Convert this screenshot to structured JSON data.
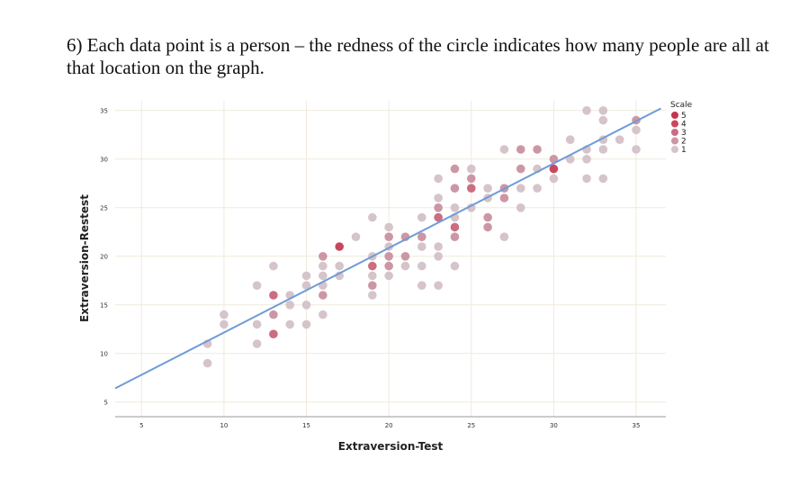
{
  "heading": "6) Each data point is a person – the redness of the circle indicates how many people are all at that location on the graph.",
  "chart_data": {
    "type": "scatter",
    "xlabel": "Extraversion-Test",
    "ylabel": "Extraversion-Restest",
    "xlim": [
      3.4,
      36.8
    ],
    "ylim": [
      3.5,
      36
    ],
    "xticks": [
      5,
      10,
      15,
      20,
      25,
      30,
      35
    ],
    "yticks": [
      5,
      10,
      15,
      20,
      25,
      30,
      35
    ],
    "grid": true,
    "legend": {
      "title": "Scale",
      "placement": "right",
      "entries": [
        5,
        4,
        3,
        2,
        1
      ],
      "colors": [
        "#c8334c",
        "#c9475d",
        "#cc6d80",
        "#cc97a5",
        "#d5c4c9"
      ]
    },
    "fit_line": {
      "intercept": 3.46,
      "slope": 0.87,
      "color": "#6f9bd8"
    },
    "points": [
      [
        9,
        11,
        1
      ],
      [
        9,
        9,
        1
      ],
      [
        10,
        14,
        1
      ],
      [
        10,
        13,
        1
      ],
      [
        12,
        17,
        1
      ],
      [
        12,
        13,
        1
      ],
      [
        12,
        11,
        1
      ],
      [
        13,
        19,
        1
      ],
      [
        13,
        16,
        3
      ],
      [
        13,
        14,
        2
      ],
      [
        13,
        12,
        3
      ],
      [
        14,
        16,
        1
      ],
      [
        14,
        15,
        1
      ],
      [
        14,
        13,
        1
      ],
      [
        15,
        18,
        1
      ],
      [
        15,
        17,
        1
      ],
      [
        15,
        15,
        1
      ],
      [
        15,
        13,
        1
      ],
      [
        16,
        20,
        2
      ],
      [
        16,
        19,
        1
      ],
      [
        16,
        18,
        1
      ],
      [
        16,
        17,
        1
      ],
      [
        16,
        16,
        2
      ],
      [
        16,
        14,
        1
      ],
      [
        17,
        21,
        4
      ],
      [
        17,
        19,
        1
      ],
      [
        17,
        18,
        1
      ],
      [
        18,
        22,
        1
      ],
      [
        19,
        24,
        1
      ],
      [
        19,
        20,
        1
      ],
      [
        19,
        19,
        3
      ],
      [
        19,
        18,
        1
      ],
      [
        19,
        17,
        2
      ],
      [
        19,
        16,
        1
      ],
      [
        20,
        23,
        1
      ],
      [
        20,
        22,
        2
      ],
      [
        20,
        21,
        1
      ],
      [
        20,
        20,
        2
      ],
      [
        20,
        19,
        2
      ],
      [
        20,
        18,
        1
      ],
      [
        21,
        22,
        2
      ],
      [
        21,
        20,
        2
      ],
      [
        21,
        19,
        1
      ],
      [
        22,
        24,
        1
      ],
      [
        22,
        22,
        2
      ],
      [
        22,
        21,
        1
      ],
      [
        22,
        19,
        1
      ],
      [
        22,
        17,
        1
      ],
      [
        23,
        28,
        1
      ],
      [
        23,
        26,
        1
      ],
      [
        23,
        25,
        2
      ],
      [
        23,
        24,
        3
      ],
      [
        23,
        21,
        1
      ],
      [
        23,
        20,
        1
      ],
      [
        23,
        17,
        1
      ],
      [
        24,
        29,
        2
      ],
      [
        24,
        27,
        2
      ],
      [
        24,
        25,
        1
      ],
      [
        24,
        24,
        1
      ],
      [
        24,
        23,
        3
      ],
      [
        24,
        22,
        2
      ],
      [
        24,
        19,
        1
      ],
      [
        25,
        29,
        1
      ],
      [
        25,
        28,
        2
      ],
      [
        25,
        27,
        3
      ],
      [
        25,
        25,
        1
      ],
      [
        26,
        27,
        1
      ],
      [
        26,
        26,
        1
      ],
      [
        26,
        24,
        2
      ],
      [
        26,
        23,
        2
      ],
      [
        27,
        31,
        1
      ],
      [
        27,
        27,
        2
      ],
      [
        27,
        26,
        2
      ],
      [
        27,
        22,
        1
      ],
      [
        28,
        31,
        2
      ],
      [
        28,
        29,
        2
      ],
      [
        28,
        27,
        1
      ],
      [
        28,
        25,
        1
      ],
      [
        29,
        31,
        2
      ],
      [
        29,
        29,
        1
      ],
      [
        29,
        27,
        1
      ],
      [
        30,
        30,
        2
      ],
      [
        30,
        29,
        4
      ],
      [
        30,
        28,
        1
      ],
      [
        31,
        32,
        1
      ],
      [
        31,
        30,
        1
      ],
      [
        32,
        35,
        1
      ],
      [
        32,
        31,
        1
      ],
      [
        32,
        30,
        1
      ],
      [
        32,
        28,
        1
      ],
      [
        33,
        35,
        1
      ],
      [
        33,
        34,
        1
      ],
      [
        33,
        32,
        1
      ],
      [
        33,
        31,
        1
      ],
      [
        33,
        28,
        1
      ],
      [
        34,
        32,
        1
      ],
      [
        35,
        34,
        2
      ],
      [
        35,
        33,
        1
      ],
      [
        35,
        31,
        1
      ]
    ]
  }
}
